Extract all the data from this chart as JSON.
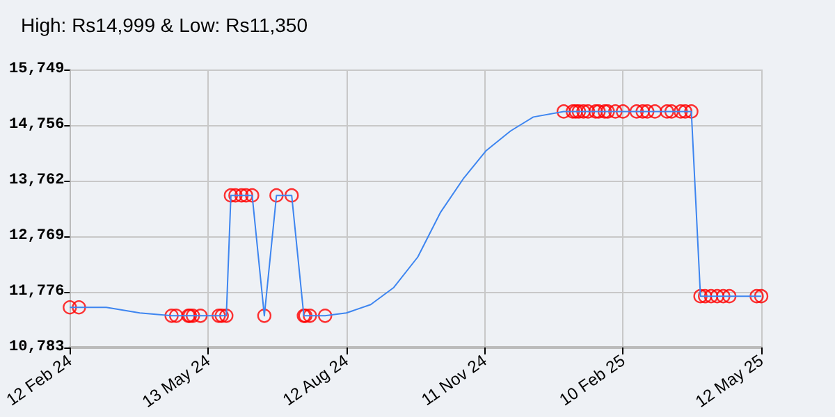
{
  "chart_data": {
    "type": "line",
    "title": "High: Rs14,999 & Low: Rs11,350",
    "xlim": [
      "2024-02-12",
      "2025-05-12"
    ],
    "xticks": [
      {
        "value": "2024-02-12",
        "label": "12 Feb 24"
      },
      {
        "value": "2024-05-13",
        "label": "13 May 24"
      },
      {
        "value": "2024-08-12",
        "label": "12 Aug 24"
      },
      {
        "value": "2024-11-11",
        "label": "11 Nov 24"
      },
      {
        "value": "2025-02-10",
        "label": "10 Feb 25"
      },
      {
        "value": "2025-05-12",
        "label": "12 May 25"
      }
    ],
    "ylim": [
      10783,
      15749
    ],
    "yticks": [
      {
        "value": 10783,
        "label": "10,783"
      },
      {
        "value": 11776,
        "label": "11,776"
      },
      {
        "value": 12769,
        "label": "12,769"
      },
      {
        "value": 13762,
        "label": "13,762"
      },
      {
        "value": 14756,
        "label": "14,756"
      },
      {
        "value": 15749,
        "label": "15,749"
      }
    ],
    "grid": true,
    "series": [
      {
        "type": "line",
        "marker": "none",
        "color": "#3d85f0",
        "x": [
          "2024-02-12",
          "2024-02-18",
          "2024-03-07",
          "2024-03-29",
          "2024-04-19",
          "2024-04-22",
          "2024-04-30",
          "2024-05-01",
          "2024-05-03",
          "2024-05-08",
          "2024-05-20",
          "2024-05-22",
          "2024-05-25",
          "2024-05-28",
          "2024-05-31",
          "2024-06-04",
          "2024-06-07",
          "2024-06-11",
          "2024-06-19",
          "2024-06-27",
          "2024-07-07",
          "2024-07-15",
          "2024-07-16",
          "2024-07-19",
          "2024-07-29",
          "2024-08-12",
          "2024-08-28",
          "2024-09-12",
          "2024-09-28",
          "2024-10-13",
          "2024-10-28",
          "2024-11-12",
          "2024-11-28",
          "2024-12-13",
          "2025-01-02",
          "2025-01-08",
          "2025-01-10",
          "2025-01-12",
          "2025-01-15",
          "2025-01-18",
          "2025-01-23",
          "2025-01-25",
          "2025-01-29",
          "2025-01-31",
          "2025-02-05",
          "2025-02-10",
          "2025-02-19",
          "2025-02-23",
          "2025-02-26",
          "2025-03-03",
          "2025-03-11",
          "2025-03-14",
          "2025-03-20",
          "2025-03-23",
          "2025-03-27",
          "2025-04-02",
          "2025-04-05",
          "2025-04-09",
          "2025-04-13",
          "2025-04-17",
          "2025-04-21",
          "2025-05-09",
          "2025-05-12"
        ],
        "values": [
          11500,
          11500,
          11500,
          11400,
          11350,
          11350,
          11350,
          11350,
          11350,
          11350,
          11350,
          11350,
          11350,
          13500,
          13500,
          13500,
          13500,
          13500,
          11350,
          13500,
          13500,
          11350,
          11350,
          11350,
          11350,
          11400,
          11550,
          11850,
          12400,
          13200,
          13800,
          14300,
          14650,
          14900,
          14999,
          14999,
          14999,
          14999,
          14999,
          14999,
          14999,
          14999,
          14999,
          14999,
          14999,
          14999,
          14999,
          14999,
          14999,
          14999,
          14999,
          14999,
          14999,
          14999,
          14999,
          11700,
          11700,
          11700,
          11700,
          11700,
          11700,
          11700,
          11700
        ]
      },
      {
        "type": "scatter",
        "marker": "circle",
        "color": "#ff0000",
        "x": [
          "2024-02-12",
          "2024-02-18",
          "2024-04-19",
          "2024-04-22",
          "2024-04-30",
          "2024-05-01",
          "2024-05-03",
          "2024-05-08",
          "2024-05-20",
          "2024-05-22",
          "2024-05-25",
          "2024-05-28",
          "2024-05-31",
          "2024-06-04",
          "2024-06-07",
          "2024-06-11",
          "2024-06-19",
          "2024-06-27",
          "2024-07-07",
          "2024-07-15",
          "2024-07-16",
          "2024-07-19",
          "2024-07-29",
          "2025-01-02",
          "2025-01-08",
          "2025-01-10",
          "2025-01-12",
          "2025-01-15",
          "2025-01-18",
          "2025-01-23",
          "2025-01-25",
          "2025-01-29",
          "2025-01-31",
          "2025-02-05",
          "2025-02-10",
          "2025-02-19",
          "2025-02-23",
          "2025-02-26",
          "2025-03-03",
          "2025-03-11",
          "2025-03-14",
          "2025-03-20",
          "2025-03-23",
          "2025-03-27",
          "2025-04-02",
          "2025-04-05",
          "2025-04-09",
          "2025-04-13",
          "2025-04-17",
          "2025-04-21",
          "2025-05-09",
          "2025-05-12"
        ],
        "values": [
          11500,
          11500,
          11350,
          11350,
          11350,
          11350,
          11350,
          11350,
          11350,
          11350,
          11350,
          13500,
          13500,
          13500,
          13500,
          13500,
          11350,
          13500,
          13500,
          11350,
          11350,
          11350,
          11350,
          14999,
          14999,
          14999,
          14999,
          14999,
          14999,
          14999,
          14999,
          14999,
          14999,
          14999,
          14999,
          14999,
          14999,
          14999,
          14999,
          14999,
          14999,
          14999,
          14999,
          14999,
          11700,
          11700,
          11700,
          11700,
          11700,
          11700,
          11700,
          11700
        ]
      }
    ]
  }
}
